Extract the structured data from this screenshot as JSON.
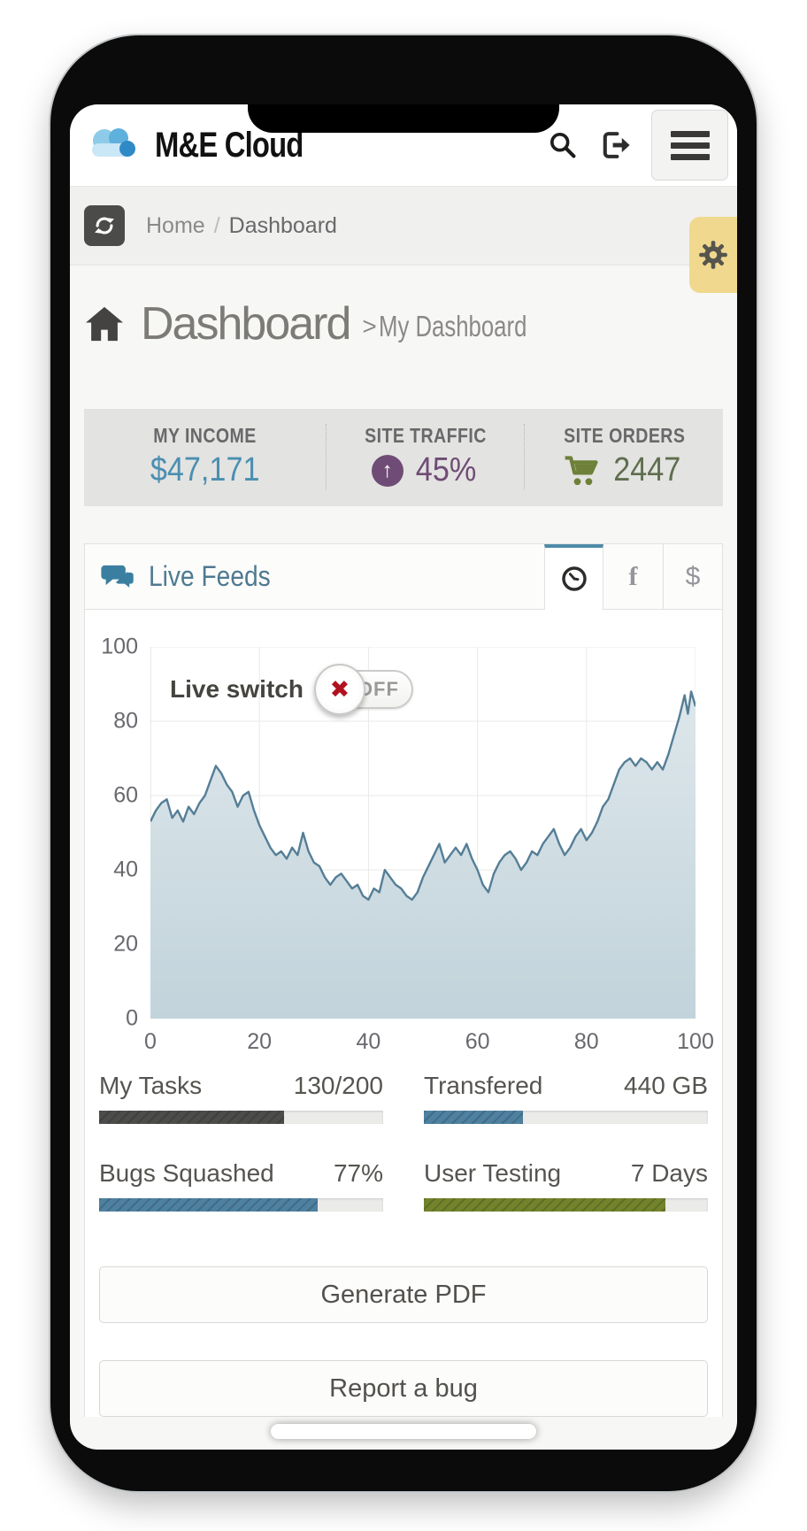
{
  "header": {
    "app_title": "M&E Cloud"
  },
  "breadcrumb": {
    "home": "Home",
    "separator": "/",
    "current": "Dashboard"
  },
  "page": {
    "title": "Dashboard",
    "subtitle_separator": ">",
    "subtitle": "My Dashboard"
  },
  "stats": [
    {
      "label": "MY INCOME",
      "value": "$47,171",
      "color": "#4b8fb1"
    },
    {
      "label": "SITE TRAFFIC",
      "value": "45%",
      "color": "#6f4c75",
      "icon": "arrow-up-circle"
    },
    {
      "label": "SITE ORDERS",
      "value": "2447",
      "color": "#5e6e4e",
      "icon": "shopping-cart",
      "icon_color": "#6e8039"
    }
  ],
  "panel": {
    "title": "Live Feeds",
    "tabs": [
      {
        "icon": "clock",
        "active": true
      },
      {
        "label": "f",
        "active": false
      },
      {
        "label": "$",
        "active": false
      }
    ]
  },
  "live_switch": {
    "label": "Live switch",
    "state": "OFF",
    "off_color": "#b1121f"
  },
  "chart_data": {
    "type": "area",
    "title": "Live Feeds",
    "xlabel": "",
    "ylabel": "",
    "xlim": [
      0,
      100
    ],
    "ylim": [
      0,
      100
    ],
    "x_ticks": [
      0,
      20,
      40,
      60,
      80,
      100
    ],
    "y_ticks": [
      0,
      20,
      40,
      60,
      80,
      100
    ],
    "grid": true,
    "legend": "none",
    "line_color": "#557e96",
    "fill_top": "#dde7eb",
    "fill_bottom": "#c2d3db",
    "series": [
      {
        "name": "Live feed",
        "points": [
          [
            0,
            53
          ],
          [
            1,
            56
          ],
          [
            2,
            58
          ],
          [
            3,
            59
          ],
          [
            4,
            54
          ],
          [
            5,
            56
          ],
          [
            6,
            53
          ],
          [
            7,
            57
          ],
          [
            8,
            55
          ],
          [
            9,
            58
          ],
          [
            10,
            60
          ],
          [
            11,
            64
          ],
          [
            12,
            68
          ],
          [
            13,
            66
          ],
          [
            14,
            63
          ],
          [
            15,
            61
          ],
          [
            16,
            57
          ],
          [
            17,
            60
          ],
          [
            18,
            61
          ],
          [
            19,
            56
          ],
          [
            20,
            52
          ],
          [
            21,
            49
          ],
          [
            22,
            46
          ],
          [
            23,
            44
          ],
          [
            24,
            45
          ],
          [
            25,
            43
          ],
          [
            26,
            46
          ],
          [
            27,
            44
          ],
          [
            28,
            50
          ],
          [
            29,
            45
          ],
          [
            30,
            42
          ],
          [
            31,
            41
          ],
          [
            32,
            38
          ],
          [
            33,
            36
          ],
          [
            34,
            38
          ],
          [
            35,
            39
          ],
          [
            36,
            37
          ],
          [
            37,
            35
          ],
          [
            38,
            36
          ],
          [
            39,
            33
          ],
          [
            40,
            32
          ],
          [
            41,
            35
          ],
          [
            42,
            34
          ],
          [
            43,
            40
          ],
          [
            44,
            38
          ],
          [
            45,
            36
          ],
          [
            46,
            35
          ],
          [
            47,
            33
          ],
          [
            48,
            32
          ],
          [
            49,
            34
          ],
          [
            50,
            38
          ],
          [
            51,
            41
          ],
          [
            52,
            44
          ],
          [
            53,
            47
          ],
          [
            54,
            42
          ],
          [
            55,
            44
          ],
          [
            56,
            46
          ],
          [
            57,
            44
          ],
          [
            58,
            47
          ],
          [
            59,
            43
          ],
          [
            60,
            40
          ],
          [
            61,
            36
          ],
          [
            62,
            34
          ],
          [
            63,
            39
          ],
          [
            64,
            42
          ],
          [
            65,
            44
          ],
          [
            66,
            45
          ],
          [
            67,
            43
          ],
          [
            68,
            40
          ],
          [
            69,
            42
          ],
          [
            70,
            45
          ],
          [
            71,
            44
          ],
          [
            72,
            47
          ],
          [
            73,
            49
          ],
          [
            74,
            51
          ],
          [
            75,
            47
          ],
          [
            76,
            44
          ],
          [
            77,
            46
          ],
          [
            78,
            49
          ],
          [
            79,
            51
          ],
          [
            80,
            48
          ],
          [
            81,
            50
          ],
          [
            82,
            53
          ],
          [
            83,
            57
          ],
          [
            84,
            59
          ],
          [
            85,
            63
          ],
          [
            86,
            67
          ],
          [
            87,
            69
          ],
          [
            88,
            70
          ],
          [
            89,
            68
          ],
          [
            90,
            70
          ],
          [
            91,
            69
          ],
          [
            92,
            67
          ],
          [
            93,
            69
          ],
          [
            94,
            67
          ],
          [
            95,
            71
          ],
          [
            96,
            76
          ],
          [
            97,
            81
          ],
          [
            98,
            87
          ],
          [
            98.6,
            82
          ],
          [
            99.2,
            88
          ],
          [
            100,
            84
          ]
        ]
      }
    ]
  },
  "progress": [
    {
      "name": "My Tasks",
      "value": "130/200",
      "pct": 65,
      "color": "#4c4c4a"
    },
    {
      "name": "Transfered",
      "value": "440 GB",
      "pct": 35,
      "color": "#4e80a0"
    },
    {
      "name": "Bugs Squashed",
      "value": "77%",
      "pct": 77,
      "color": "#4e80a0"
    },
    {
      "name": "User Testing",
      "value": "7 Days",
      "pct": 85,
      "color": "#72832c"
    }
  ],
  "actions": {
    "generate_pdf": "Generate PDF",
    "report_bug": "Report a bug"
  }
}
